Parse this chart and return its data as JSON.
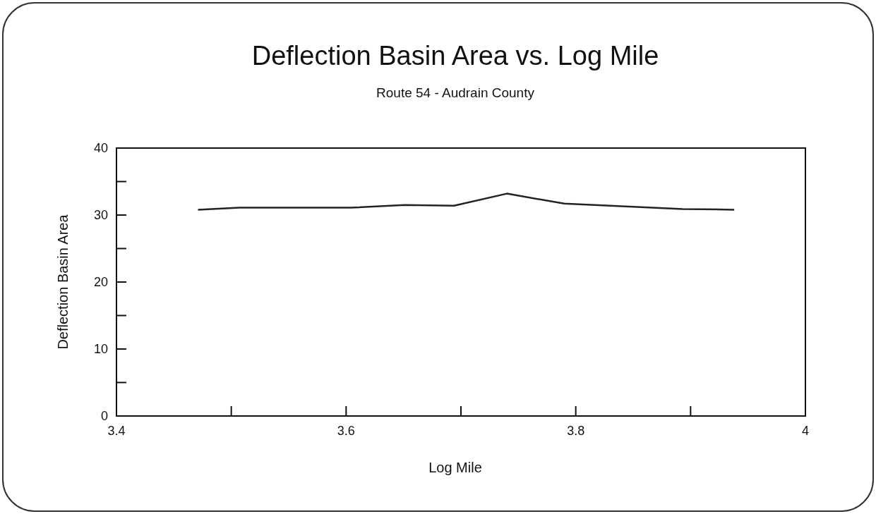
{
  "chart_data": {
    "type": "line",
    "title": "Deflection Basin Area vs. Log Mile",
    "subtitle": "Route 54 - Audrain County",
    "xlabel": "Log Mile",
    "ylabel": "Deflection Basin Area",
    "x": [
      3.471,
      3.507,
      3.604,
      3.651,
      3.694,
      3.74,
      3.79,
      3.893,
      3.938
    ],
    "series": [
      {
        "color": "#222222",
        "values": [
          30.8,
          31.1,
          31.1,
          31.5,
          31.4,
          33.2,
          31.7,
          30.9,
          30.8
        ]
      }
    ],
    "xlim": [
      3.4,
      4
    ],
    "xticks": [
      3.4,
      {
        "value": 3.5,
        "label": null
      },
      3.6,
      {
        "value": 3.7,
        "label": null
      },
      3.8,
      {
        "value": 3.9,
        "label": null
      },
      4
    ],
    "ylim": [
      0,
      40
    ],
    "yticks": [
      0,
      {
        "value": 5,
        "label": null
      },
      10,
      {
        "value": 15,
        "label": null
      },
      20,
      {
        "value": 25,
        "label": null
      },
      30,
      {
        "value": 35,
        "label": null
      },
      40
    ],
    "grid": false,
    "marker": "none",
    "line_style": "solid"
  }
}
